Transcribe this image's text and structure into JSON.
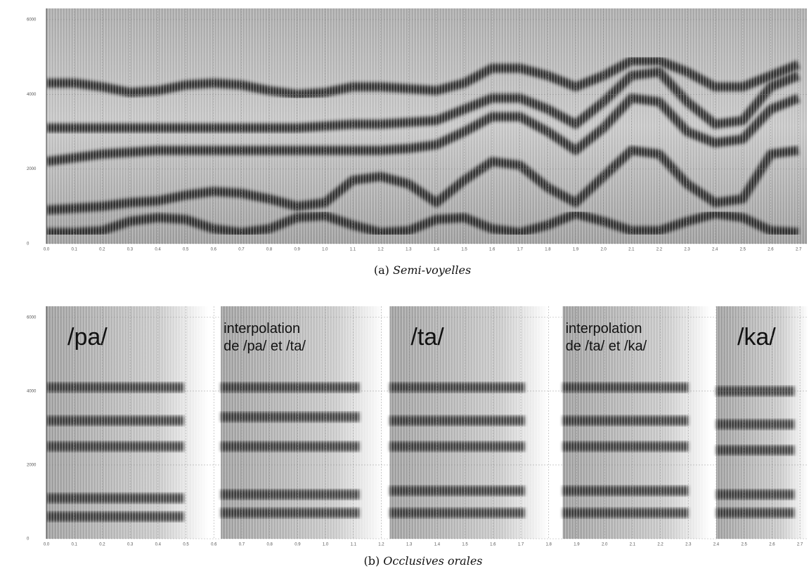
{
  "chart_data": [
    {
      "type": "spectrogram",
      "caption": {
        "label": "(a)",
        "text": "Semi-voyelles"
      },
      "xlim": [
        0,
        2.73
      ],
      "ylim": [
        0,
        6300
      ],
      "yticks": [
        0,
        2000,
        4000,
        6000
      ],
      "xticks": [
        {
          "value": 0,
          "label": "0.0"
        },
        0.1,
        0.2,
        0.3,
        0.4,
        0.5,
        0.6,
        0.7,
        0.8,
        0.9,
        {
          "value": 1,
          "label": "1.0"
        },
        1.1,
        1.2,
        1.3,
        1.4,
        1.5,
        1.6,
        1.7,
        1.8,
        1.9,
        {
          "value": 2,
          "label": "2.0"
        },
        2.1,
        2.2,
        2.3,
        2.4,
        2.5,
        2.6,
        2.7
      ],
      "grid": true,
      "x": [
        0,
        0.1,
        0.2,
        0.3,
        0.4,
        0.5,
        0.6,
        0.7,
        0.8,
        0.9,
        1.0,
        1.1,
        1.2,
        1.3,
        1.4,
        1.5,
        1.6,
        1.7,
        1.8,
        1.9,
        2.0,
        2.1,
        2.2,
        2.3,
        2.4,
        2.5,
        2.6,
        2.7
      ],
      "series": [
        {
          "color": "#1a1a1a",
          "values": [
            300,
            300,
            350,
            600,
            700,
            650,
            400,
            300,
            400,
            700,
            750,
            500,
            300,
            350,
            650,
            700,
            400,
            300,
            500,
            800,
            600,
            350,
            350,
            600,
            800,
            700,
            350,
            300
          ]
        },
        {
          "color": "#1a1a1a",
          "values": [
            900,
            950,
            1000,
            1100,
            1150,
            1300,
            1400,
            1350,
            1200,
            1000,
            1100,
            1700,
            1800,
            1600,
            1100,
            1700,
            2200,
            2100,
            1500,
            1100,
            1800,
            2500,
            2400,
            1600,
            1100,
            1200,
            2400,
            2500
          ]
        },
        {
          "color": "#1a1a1a",
          "values": [
            2200,
            2300,
            2400,
            2450,
            2500,
            2500,
            2500,
            2500,
            2500,
            2500,
            2500,
            2500,
            2500,
            2550,
            2650,
            3000,
            3400,
            3400,
            3000,
            2500,
            3100,
            3900,
            3800,
            3000,
            2700,
            2800,
            3600,
            3900
          ]
        },
        {
          "color": "#1a1a1a",
          "values": [
            3100,
            3100,
            3100,
            3100,
            3100,
            3100,
            3100,
            3100,
            3100,
            3100,
            3150,
            3200,
            3200,
            3250,
            3300,
            3600,
            3900,
            3900,
            3600,
            3200,
            3800,
            4500,
            4600,
            3800,
            3200,
            3300,
            4200,
            4500
          ]
        },
        {
          "color": "#1a1a1a",
          "values": [
            4300,
            4300,
            4200,
            4050,
            4100,
            4250,
            4300,
            4250,
            4100,
            4000,
            4050,
            4200,
            4200,
            4150,
            4100,
            4300,
            4700,
            4700,
            4500,
            4200,
            4500,
            4900,
            4900,
            4600,
            4200,
            4200,
            4500,
            4800
          ]
        }
      ]
    },
    {
      "type": "spectrogram",
      "caption": {
        "label": "(b)",
        "text": "Occlusives orales"
      },
      "xlim": [
        0,
        2.73
      ],
      "ylim": [
        0,
        6300
      ],
      "yticks": [
        0,
        2000,
        4000,
        6000
      ],
      "xticks": [
        {
          "value": 0,
          "label": "0.0"
        },
        0.1,
        0.2,
        0.3,
        0.4,
        0.5,
        0.6,
        0.7,
        0.8,
        0.9,
        {
          "value": 1,
          "label": "1.0"
        },
        1.1,
        1.2,
        1.3,
        1.4,
        1.5,
        1.6,
        1.7,
        1.8,
        1.9,
        {
          "value": 2,
          "label": "2.0"
        },
        2.1,
        2.2,
        2.3,
        2.4,
        2.5,
        2.6,
        2.7
      ],
      "grid": true,
      "segments": [
        {
          "label": [
            "/pa/"
          ],
          "start": 0,
          "end": 0.58,
          "formants": [
            600,
            1100,
            2500,
            3200,
            4100
          ]
        },
        {
          "label": [
            "interpolation",
            "de /pa/ et /ta/"
          ],
          "start": 0.625,
          "end": 1.21,
          "formants": [
            700,
            1200,
            2500,
            3300,
            4100
          ]
        },
        {
          "label": [
            "/ta/"
          ],
          "start": 1.23,
          "end": 1.8,
          "formants": [
            700,
            1300,
            2500,
            3200,
            4100
          ]
        },
        {
          "label": [
            "interpolation",
            "de /ta/ et /ka/"
          ],
          "start": 1.85,
          "end": 2.38,
          "formants": [
            700,
            1300,
            2500,
            3200,
            4100
          ]
        },
        {
          "label": [
            "/ka/"
          ],
          "start": 2.4,
          "end": 2.73,
          "formants": [
            700,
            1200,
            2400,
            3100,
            4000
          ]
        }
      ]
    }
  ]
}
